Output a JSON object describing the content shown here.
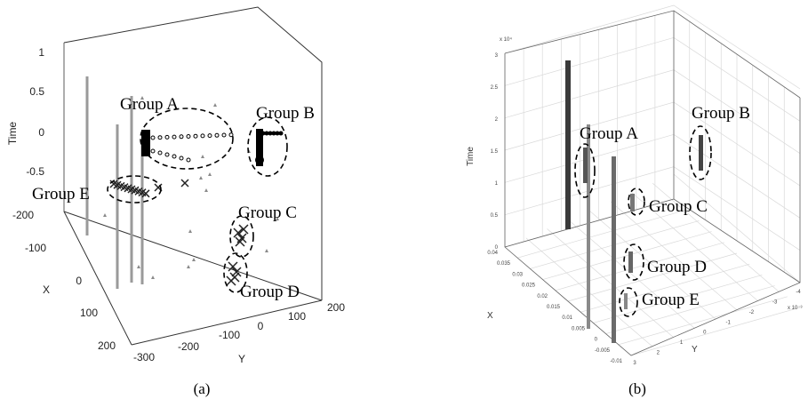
{
  "chart_data": [
    {
      "type": "scatter",
      "dimensions": 3,
      "caption": "(a)",
      "zlabel": "Time",
      "xlabel": "X",
      "ylabel": "Y",
      "z_ticks": [
        "1",
        "0.5",
        "0",
        "-0.5"
      ],
      "x_ticks": [
        "-200",
        "-100",
        "0",
        "100",
        "200"
      ],
      "y_ticks": [
        "-300",
        "-200",
        "-100",
        "0",
        "100",
        "200"
      ],
      "groups": [
        {
          "name": "Group A"
        },
        {
          "name": "Group B"
        },
        {
          "name": "Group C"
        },
        {
          "name": "Group D"
        },
        {
          "name": "Group E"
        }
      ]
    },
    {
      "type": "scatter",
      "dimensions": 3,
      "caption": "(b)",
      "zlabel": "Time",
      "xlabel": "X",
      "ylabel": "Y",
      "z_exponent": "x 10⁴",
      "y_exponent": "x 10⁻³",
      "z_ticks": [
        "3",
        "2.5",
        "2",
        "1.5",
        "1",
        "0.5",
        "0"
      ],
      "x_ticks": [
        "0.04",
        "0.035",
        "0.03",
        "0.025",
        "0.02",
        "0.015",
        "0.01",
        "0.005",
        "0",
        "-0.005",
        "-0.01"
      ],
      "y_ticks": [
        "3",
        "2",
        "1",
        "0",
        "-1",
        "-2",
        "-3",
        "-4"
      ],
      "groups": [
        {
          "name": "Group A"
        },
        {
          "name": "Group B"
        },
        {
          "name": "Group C"
        },
        {
          "name": "Group D"
        },
        {
          "name": "Group E"
        }
      ]
    }
  ]
}
